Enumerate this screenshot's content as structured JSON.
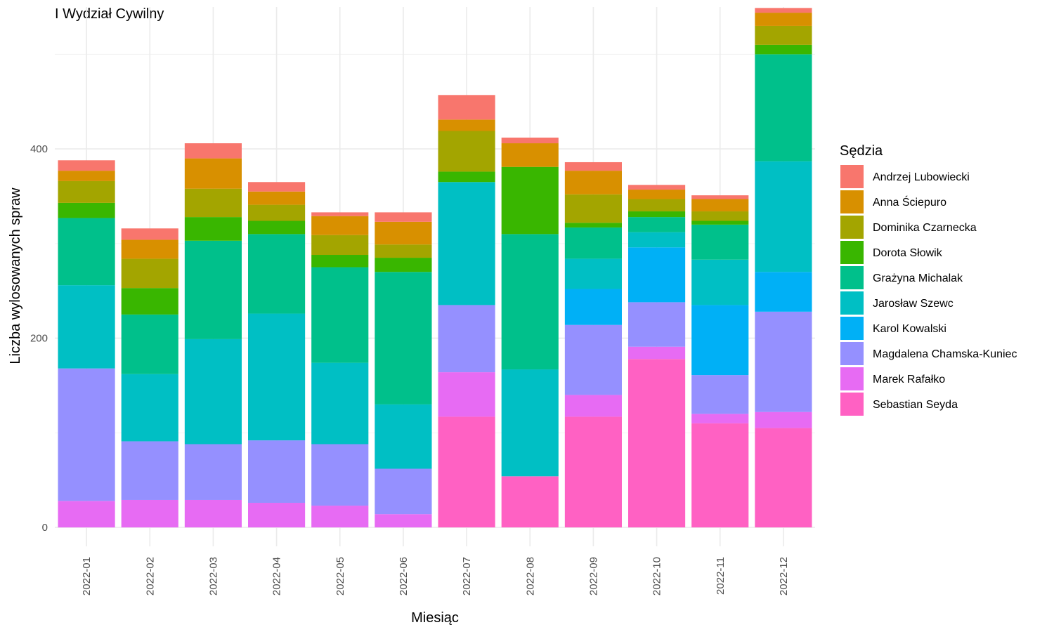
{
  "chart_data": {
    "type": "bar",
    "stacked": true,
    "title": "I Wydział Cywilny",
    "xlabel": "Miesiąc",
    "ylabel": "Liczba wylosowanych spraw",
    "ylim": [
      -20,
      550
    ],
    "yticks": [
      0,
      200,
      400
    ],
    "grid": true,
    "legend_title": "Sędzia",
    "legend_position": "right",
    "categories": [
      "2022-01",
      "2022-02",
      "2022-03",
      "2022-04",
      "2022-05",
      "2022-06",
      "2022-07",
      "2022-08",
      "2022-09",
      "2022-10",
      "2022-11",
      "2022-12"
    ],
    "series": [
      {
        "name": "Sebastian Seyda",
        "color": "#FF61C3",
        "values": [
          0,
          0,
          0,
          0,
          0,
          0,
          117,
          54,
          117,
          178,
          110,
          105
        ]
      },
      {
        "name": "Marek Rafałko",
        "color": "#E76BF3",
        "values": [
          28,
          29,
          29,
          26,
          23,
          14,
          47,
          0,
          23,
          13,
          10,
          17
        ]
      },
      {
        "name": "Magdalena Chamska-Kuniec",
        "color": "#9590FF",
        "values": [
          140,
          62,
          59,
          66,
          65,
          48,
          71,
          0,
          74,
          47,
          41,
          106
        ]
      },
      {
        "name": "Karol Kowalski",
        "color": "#00B0F6",
        "values": [
          0,
          0,
          0,
          0,
          0,
          0,
          0,
          0,
          38,
          58,
          74,
          42
        ]
      },
      {
        "name": "Jarosław Szewc",
        "color": "#00BFC4",
        "values": [
          88,
          71,
          111,
          134,
          86,
          68,
          130,
          113,
          32,
          16,
          48,
          117
        ]
      },
      {
        "name": "Grażyna Michalak",
        "color": "#00C08B",
        "values": [
          71,
          63,
          104,
          84,
          101,
          140,
          0,
          143,
          33,
          16,
          37,
          113
        ]
      },
      {
        "name": "Dorota Słowik",
        "color": "#39B600",
        "values": [
          16,
          28,
          25,
          14,
          13,
          15,
          11,
          71,
          5,
          6,
          4,
          10
        ]
      },
      {
        "name": "Dominika Czarnecka",
        "color": "#A3A500",
        "values": [
          23,
          31,
          30,
          17,
          21,
          14,
          43,
          0,
          30,
          13,
          10,
          20
        ]
      },
      {
        "name": "Anna Ściepuro",
        "color": "#D89000",
        "values": [
          11,
          20,
          32,
          14,
          20,
          24,
          12,
          25,
          25,
          10,
          13,
          14
        ]
      },
      {
        "name": "Andrzej Lubowiecki",
        "color": "#F8766D",
        "values": [
          11,
          12,
          16,
          10,
          4,
          10,
          26,
          6,
          9,
          5,
          4,
          5
        ]
      }
    ]
  }
}
